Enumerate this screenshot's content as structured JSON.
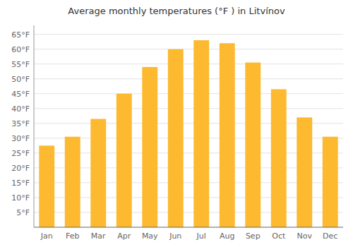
{
  "chart_data": {
    "type": "bar",
    "title": "Average monthly temperatures (°F ) in Litvínov",
    "categories": [
      "Jan",
      "Feb",
      "Mar",
      "Apr",
      "May",
      "Jun",
      "Jul",
      "Aug",
      "Sep",
      "Oct",
      "Nov",
      "Dec"
    ],
    "values": [
      27.5,
      30.5,
      36.5,
      45.0,
      54.0,
      60.0,
      63.0,
      62.0,
      55.5,
      46.5,
      37.0,
      30.5
    ],
    "color": "#FDB930",
    "ylim": [
      0,
      68
    ],
    "yticks": [
      {
        "value": 5,
        "label": "5°F"
      },
      {
        "value": 10,
        "label": "10°F"
      },
      {
        "value": 15,
        "label": "15°F"
      },
      {
        "value": 20,
        "label": "20°F"
      },
      {
        "value": 25,
        "label": "25°F"
      },
      {
        "value": 30,
        "label": "30°F"
      },
      {
        "value": 35,
        "label": "35°F"
      },
      {
        "value": 40,
        "label": "40°F"
      },
      {
        "value": 45,
        "label": "45°F"
      },
      {
        "value": 50,
        "label": "50°F"
      },
      {
        "value": 55,
        "label": "55°F"
      },
      {
        "value": 60,
        "label": "60°F"
      },
      {
        "value": 65,
        "label": "65°F"
      }
    ],
    "grid": true
  }
}
